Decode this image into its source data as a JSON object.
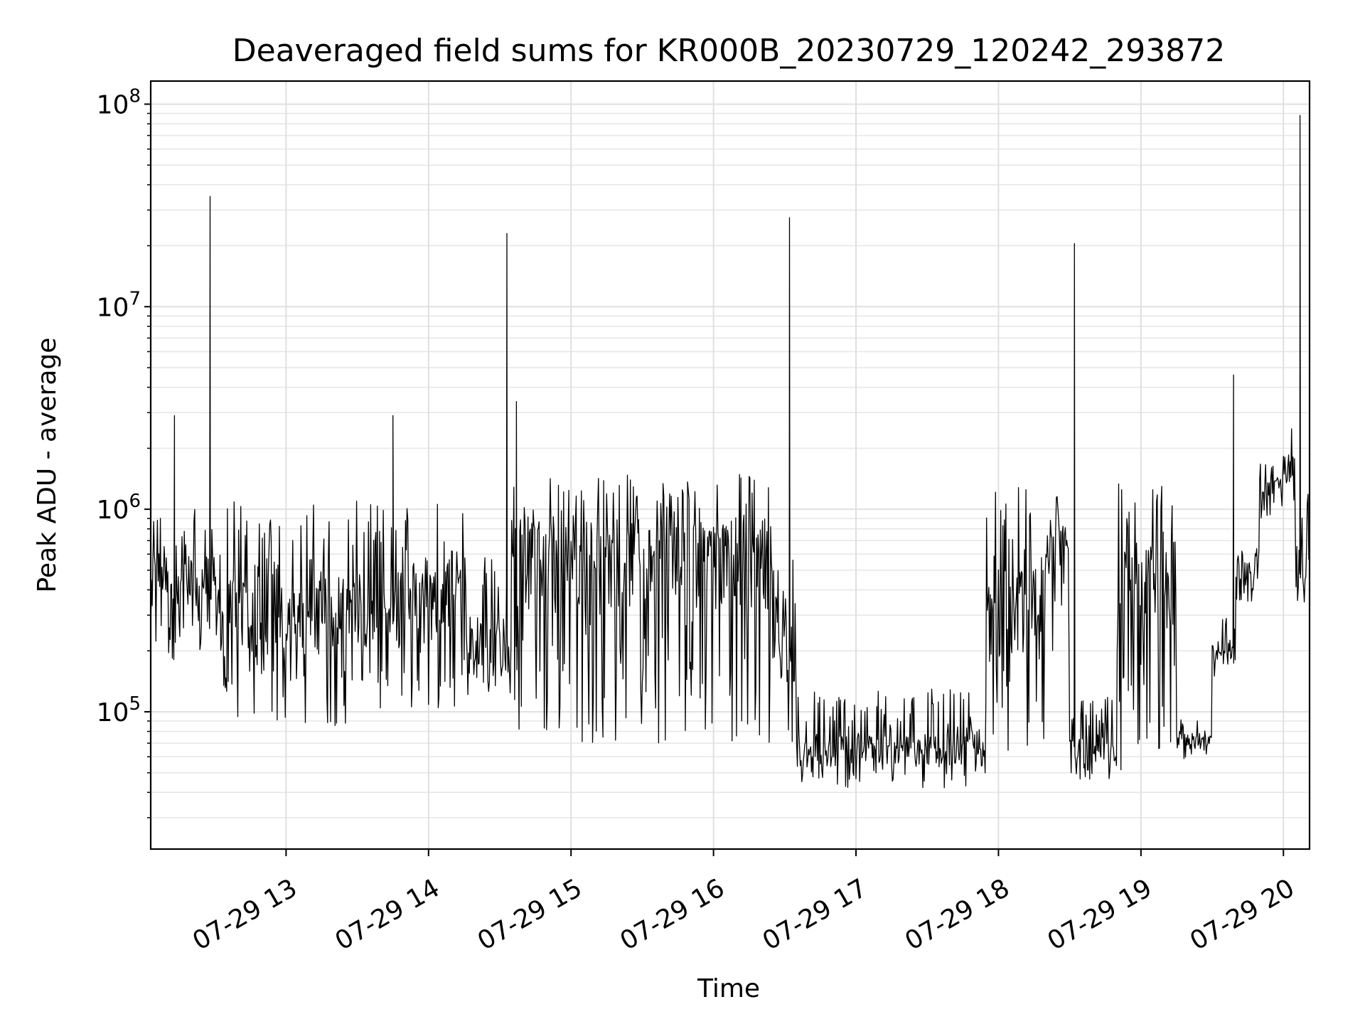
{
  "chart_data": {
    "type": "line",
    "title": "Deaveraged field sums for KR000B_20230729_120242_293872",
    "xlabel": "Time",
    "ylabel": "Peak ADU - average",
    "yscale": "log",
    "grid": true,
    "xlim": [
      "2023-07-29 12:03",
      "2023-07-29 20:11"
    ],
    "ylim": [
      21000,
      130000000
    ],
    "x_ticks": [
      {
        "value": "2023-07-29 13:00",
        "label": "07-29 13"
      },
      {
        "value": "2023-07-29 14:00",
        "label": "07-29 14"
      },
      {
        "value": "2023-07-29 15:00",
        "label": "07-29 15"
      },
      {
        "value": "2023-07-29 16:00",
        "label": "07-29 16"
      },
      {
        "value": "2023-07-29 17:00",
        "label": "07-29 17"
      },
      {
        "value": "2023-07-29 18:00",
        "label": "07-29 18"
      },
      {
        "value": "2023-07-29 19:00",
        "label": "07-29 19"
      },
      {
        "value": "2023-07-29 20:00",
        "label": "07-29 20"
      }
    ],
    "y_ticks": [
      {
        "value": 100000,
        "base": "10",
        "exp": "5"
      },
      {
        "value": 1000000,
        "base": "10",
        "exp": "6"
      },
      {
        "value": 10000000,
        "base": "10",
        "exp": "7"
      },
      {
        "value": 100000000,
        "base": "10",
        "exp": "8"
      }
    ],
    "series": [
      {
        "color": "#000000",
        "segments": [
          {
            "start": "2023-07-29 12:03",
            "end": "2023-07-29 12:30",
            "base": 450000,
            "low": 180000,
            "high": 1000000
          },
          {
            "start": "2023-07-29 12:30",
            "end": "2023-07-29 13:50",
            "base": 300000,
            "low": 85000,
            "high": 1100000
          },
          {
            "start": "2023-07-29 13:50",
            "end": "2023-07-29 14:15",
            "base": 400000,
            "low": 100000,
            "high": 1200000
          },
          {
            "start": "2023-07-29 14:15",
            "end": "2023-07-29 14:35",
            "base": 220000,
            "low": 120000,
            "high": 600000
          },
          {
            "start": "2023-07-29 14:35",
            "end": "2023-07-29 16:25",
            "base": 550000,
            "low": 70000,
            "high": 1500000
          },
          {
            "start": "2023-07-29 16:25",
            "end": "2023-07-29 16:35",
            "base": 200000,
            "low": 70000,
            "high": 600000
          },
          {
            "start": "2023-07-29 16:35",
            "end": "2023-07-29 17:55",
            "base": 65000,
            "low": 42000,
            "high": 130000
          },
          {
            "start": "2023-07-29 17:55",
            "end": "2023-07-29 18:20",
            "base": 300000,
            "low": 60000,
            "high": 1300000
          },
          {
            "start": "2023-07-29 18:20",
            "end": "2023-07-29 18:30",
            "base": 600000,
            "low": 200000,
            "high": 1300000
          },
          {
            "start": "2023-07-29 18:30",
            "end": "2023-07-29 18:50",
            "base": 65000,
            "low": 45000,
            "high": 120000
          },
          {
            "start": "2023-07-29 18:50",
            "end": "2023-07-29 19:15",
            "base": 400000,
            "low": 50000,
            "high": 1400000
          },
          {
            "start": "2023-07-29 19:15",
            "end": "2023-07-29 19:30",
            "base": 75000,
            "low": 58000,
            "high": 95000
          },
          {
            "start": "2023-07-29 19:30",
            "end": "2023-07-29 19:40",
            "base": 200000,
            "low": 150000,
            "high": 300000
          },
          {
            "start": "2023-07-29 19:40",
            "end": "2023-07-29 19:50",
            "base": 500000,
            "low": 350000,
            "high": 800000
          },
          {
            "start": "2023-07-29 19:50",
            "end": "2023-07-29 20:00",
            "base": 1300000,
            "low": 900000,
            "high": 1700000
          },
          {
            "start": "2023-07-29 20:00",
            "end": "2023-07-29 20:05",
            "base": 1600000,
            "low": 1000000,
            "high": 2500000
          },
          {
            "start": "2023-07-29 20:05",
            "end": "2023-07-29 20:11",
            "base": 500000,
            "low": 330000,
            "high": 1600000
          }
        ],
        "spikes": [
          {
            "x": "2023-07-29 12:13",
            "y": 2900000
          },
          {
            "x": "2023-07-29 12:28",
            "y": 35000000
          },
          {
            "x": "2023-07-29 13:45",
            "y": 2900000
          },
          {
            "x": "2023-07-29 14:33",
            "y": 23000000
          },
          {
            "x": "2023-07-29 14:37",
            "y": 3400000
          },
          {
            "x": "2023-07-29 16:32",
            "y": 27500000
          },
          {
            "x": "2023-07-29 18:32",
            "y": 20500000
          },
          {
            "x": "2023-07-29 19:39",
            "y": 4600000
          },
          {
            "x": "2023-07-29 20:07",
            "y": 88000000
          }
        ]
      }
    ]
  }
}
